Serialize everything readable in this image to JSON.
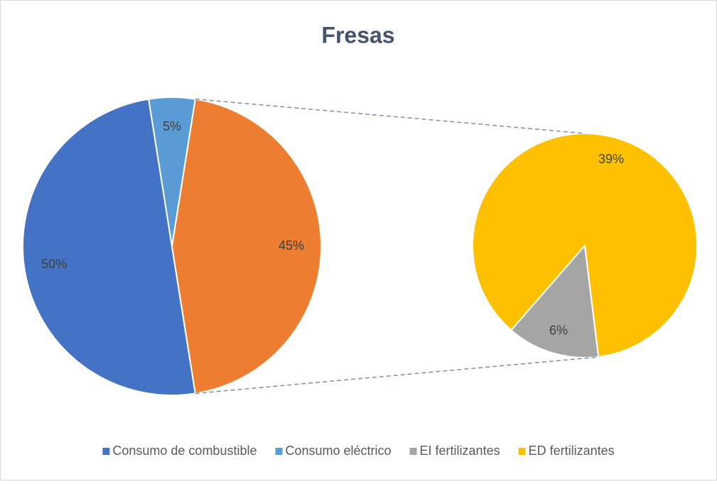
{
  "chart_data": {
    "type": "pie-of-pie",
    "title": "Fresas",
    "primary": {
      "categories": [
        "Consumo de combustible",
        "Consumo eléctrico",
        null
      ],
      "values": [
        50,
        5,
        45
      ],
      "value_labels": [
        "50%",
        "5%",
        "45%"
      ],
      "colors": [
        "#4472c4",
        "#5b9bd5",
        "#ed7d31"
      ]
    },
    "secondary": {
      "categories": [
        "EI fertilizantes",
        "ED fertilizantes"
      ],
      "values": [
        6,
        39
      ],
      "value_labels": [
        "6%",
        "39%"
      ],
      "colors": [
        "#a5a5a5",
        "#ffc000"
      ]
    },
    "legend": "bottom"
  }
}
